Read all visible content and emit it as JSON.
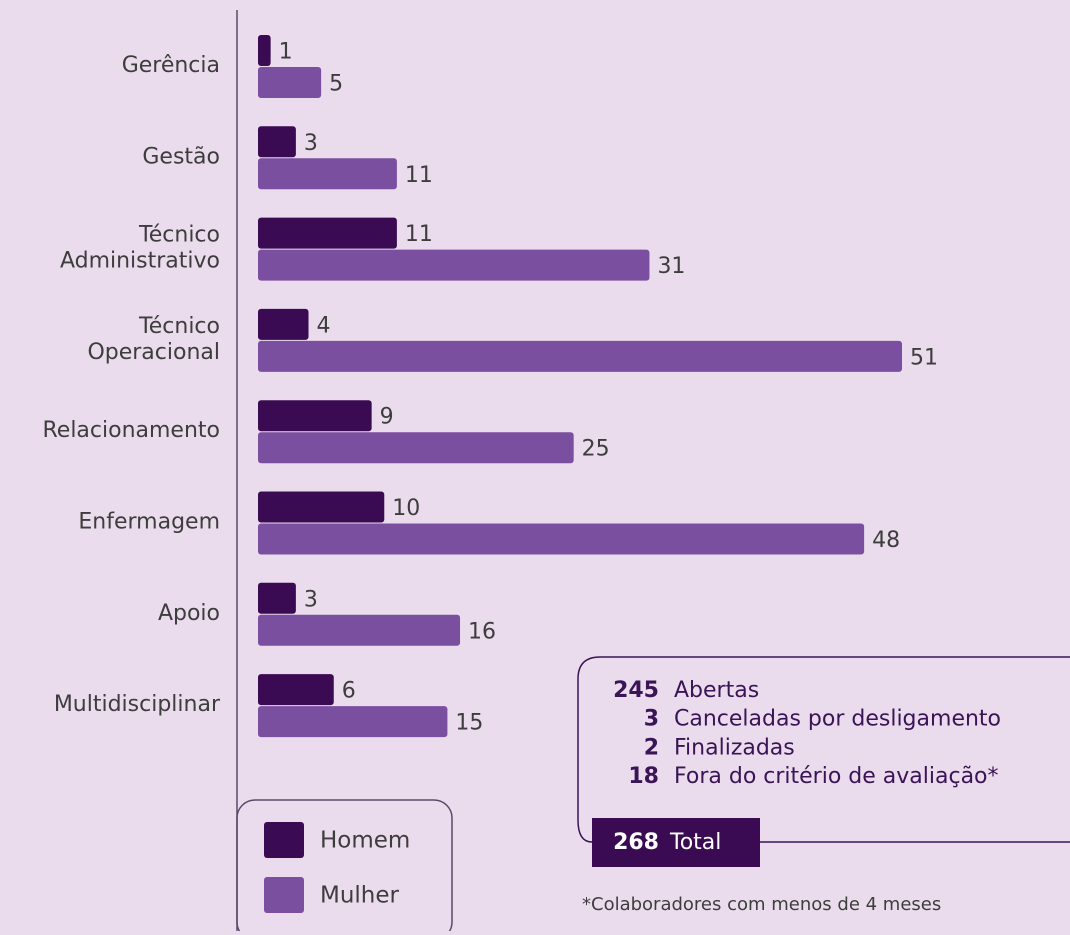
{
  "chart_data": {
    "type": "bar",
    "orientation": "horizontal",
    "categories": [
      "Gerência",
      "Gestão",
      "Técnico Administrativo",
      "Técnico Operacional",
      "Relacionamento",
      "Enfermagem",
      "Apoio",
      "Multidisciplinar"
    ],
    "series": [
      {
        "name": "Homem",
        "color": "#3a0b52",
        "values": [
          1,
          3,
          11,
          4,
          9,
          10,
          3,
          6
        ]
      },
      {
        "name": "Mulher",
        "color": "#7b4fa0",
        "values": [
          5,
          11,
          31,
          51,
          25,
          48,
          16,
          15
        ]
      }
    ]
  },
  "summary": {
    "items": [
      {
        "value": 245,
        "label": "Abertas"
      },
      {
        "value": 3,
        "label": "Canceladas por desligamento"
      },
      {
        "value": 2,
        "label": "Finalizadas"
      },
      {
        "value": 18,
        "label": "Fora do critério de avaliação*"
      }
    ],
    "total": {
      "value": 268,
      "label": "Total"
    },
    "footnote": "*Colaboradores com menos de 4 meses"
  }
}
